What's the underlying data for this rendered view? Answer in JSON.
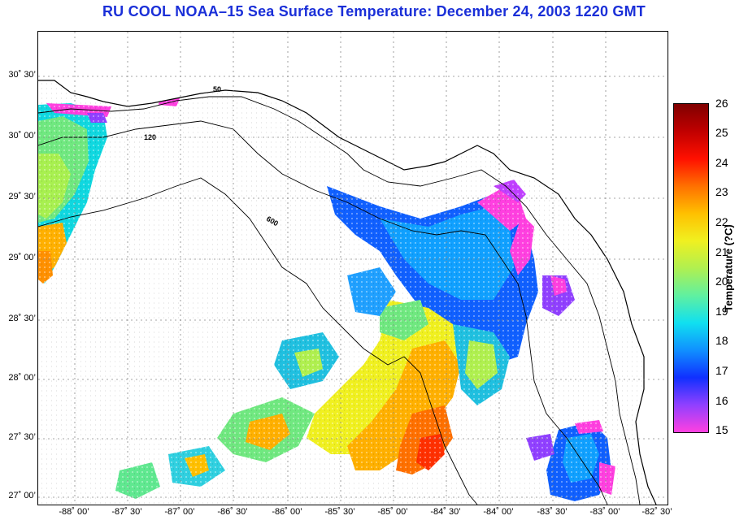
{
  "title": "RU COOL  NOAA–15  Sea Surface Temperature:  December 24, 2003 1220 GMT",
  "colors": {
    "title": "#1a2fd8",
    "land": "#ffffff",
    "coast": "#000000",
    "grid": "#888888"
  },
  "latitude_labels": [
    "30˚ 30’",
    "30˚ 00’",
    "29˚ 30’",
    "29˚ 00’",
    "28˚ 30’",
    "28˚ 00’",
    "27˚ 30’",
    "27˚ 00’"
  ],
  "longitude_labels": [
    "-88˚ 00’",
    "-87˚ 30’",
    "-87˚ 00’",
    "-86˚ 30’",
    "-86˚ 00’",
    "-85˚ 30’",
    "-85˚ 00’",
    "-84˚ 30’",
    "-84˚ 00’",
    "-83˚ 30’",
    "-83˚ 00’",
    "-82˚ 30’"
  ],
  "colorbar": {
    "label": "Temperature (?C)",
    "ticks": [
      "26",
      "25",
      "24",
      "23",
      "22",
      "21",
      "20",
      "19",
      "18",
      "17",
      "16",
      "15"
    ],
    "range": [
      15,
      26
    ],
    "stops": [
      "#ff40e0",
      "#9040ff",
      "#1030ff",
      "#1090ff",
      "#10e0f0",
      "#60f0a0",
      "#b0f050",
      "#f0f020",
      "#ffc000",
      "#ff7000",
      "#ff1000",
      "#c00000",
      "#800000"
    ]
  },
  "contour_labels": [
    "50",
    "120",
    "600"
  ]
}
